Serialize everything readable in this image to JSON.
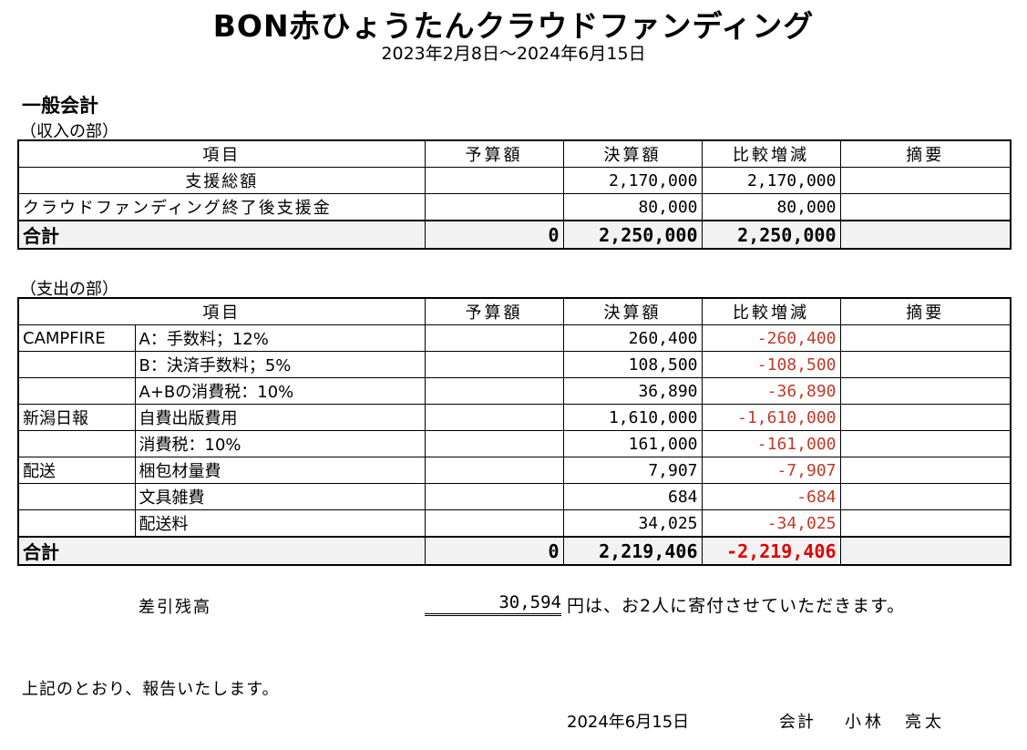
{
  "title": "BON赤ひょうたんクラウドファンディング",
  "period": "2023年2月8日～2024年6月15日",
  "section_title": "一般会計",
  "income": {
    "heading": "（収入の部）",
    "headers": [
      "項目",
      "予算額",
      "決算額",
      "比較増減",
      "摘要"
    ],
    "rows": [
      {
        "item": "支援総額",
        "budget": "",
        "actual": "2,170,000",
        "diff": "2,170,000",
        "note": ""
      },
      {
        "item": "クラウドファンディング終了後支援金",
        "budget": "",
        "actual": "80,000",
        "diff": "80,000",
        "note": ""
      }
    ],
    "total": {
      "label": "合計",
      "budget": "0",
      "actual": "2,250,000",
      "diff": "2,250,000",
      "note": ""
    }
  },
  "expense": {
    "heading": "（支出の部）",
    "headers": [
      "項目",
      "予算額",
      "決算額",
      "比較増減",
      "摘要"
    ],
    "rows": [
      {
        "group": "CAMPFIRE",
        "item": "A：手数料；12%",
        "budget": "",
        "actual": "260,400",
        "diff": "-260,400",
        "note": ""
      },
      {
        "group": "",
        "item": "B：決済手数料；5%",
        "budget": "",
        "actual": "108,500",
        "diff": "-108,500",
        "note": ""
      },
      {
        "group": "",
        "item": "A+Bの消費税：10%",
        "budget": "",
        "actual": "36,890",
        "diff": "-36,890",
        "note": ""
      },
      {
        "group": "新潟日報",
        "item": "自費出版費用",
        "budget": "",
        "actual": "1,610,000",
        "diff": "-1,610,000",
        "note": ""
      },
      {
        "group": "",
        "item": "消費税：10%",
        "budget": "",
        "actual": "161,000",
        "diff": "-161,000",
        "note": ""
      },
      {
        "group": "配送",
        "item": "梱包材量費",
        "budget": "",
        "actual": "7,907",
        "diff": "-7,907",
        "note": ""
      },
      {
        "group": "",
        "item": "文具雑費",
        "budget": "",
        "actual": "684",
        "diff": "-684",
        "note": ""
      },
      {
        "group": "",
        "item": "配送料",
        "budget": "",
        "actual": "34,025",
        "diff": "-34,025",
        "note": ""
      }
    ],
    "total": {
      "label": "合計",
      "budget": "0",
      "actual": "2,219,406",
      "diff": "-2,219,406",
      "note": ""
    }
  },
  "balance": {
    "label": "差引残高",
    "value": "30,594",
    "text": "円は、お2人に寄付させていただきます。"
  },
  "report_text": "上記のとおり、報告いたします。",
  "signature": {
    "date": "2024年6月15日",
    "role": "会計",
    "name": "小林　亮太"
  },
  "colors": {
    "negative": "#c0392b",
    "negative_total": "#e00000",
    "total_row_bg": "#f2f2f2"
  }
}
